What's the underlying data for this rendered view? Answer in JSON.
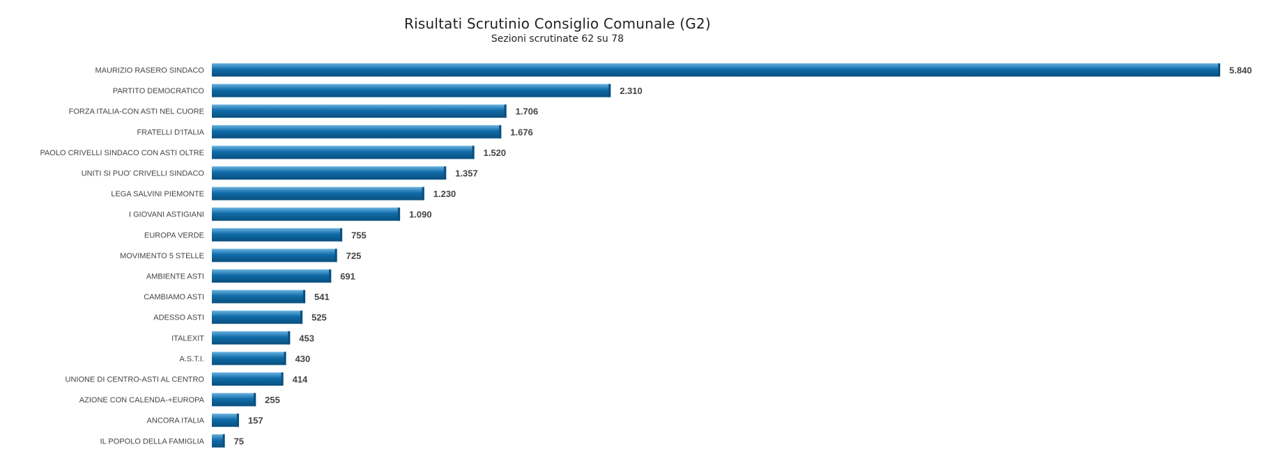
{
  "chart_data": {
    "type": "bar",
    "orientation": "horizontal",
    "title": "Risultati Scrutinio Consiglio Comunale (G2)",
    "subtitle": "Sezioni scrutinate 62 su 78",
    "categories": [
      "MAURIZIO RASERO SINDACO",
      "PARTITO DEMOCRATICO",
      "FORZA ITALIA-CON ASTI NEL CUORE",
      "FRATELLI D'ITALIA",
      "PAOLO CRIVELLI SINDACO CON ASTI OLTRE",
      "UNITI SI PUO' CRIVELLI SINDACO",
      "LEGA SALVINI PIEMONTE",
      "I GIOVANI ASTIGIANI",
      "EUROPA VERDE",
      "MOVIMENTO 5 STELLE",
      "AMBIENTE ASTI",
      "CAMBIAMO ASTI",
      "ADESSO ASTI",
      "ITALEXIT",
      "A.S.T.I.",
      "UNIONE DI CENTRO-ASTI AL CENTRO",
      "AZIONE CON CALENDA-+EUROPA",
      "ANCORA ITALIA",
      "IL POPOLO DELLA FAMIGLIA"
    ],
    "values": [
      5840,
      2310,
      1706,
      1676,
      1520,
      1357,
      1230,
      1090,
      755,
      725,
      691,
      541,
      525,
      453,
      430,
      414,
      255,
      157,
      75
    ],
    "value_labels": [
      "5.840",
      "2.310",
      "1.706",
      "1.676",
      "1.520",
      "1.357",
      "1.230",
      "1.090",
      "755",
      "725",
      "691",
      "541",
      "525",
      "453",
      "430",
      "414",
      "255",
      "157",
      "75"
    ],
    "xlabel": "",
    "ylabel": "",
    "grid": false,
    "legend": "none",
    "bar_color": "#0f6ba8",
    "bar_color_light": "#6ab3e0",
    "bar_color_dark": "#0a4f7e"
  }
}
